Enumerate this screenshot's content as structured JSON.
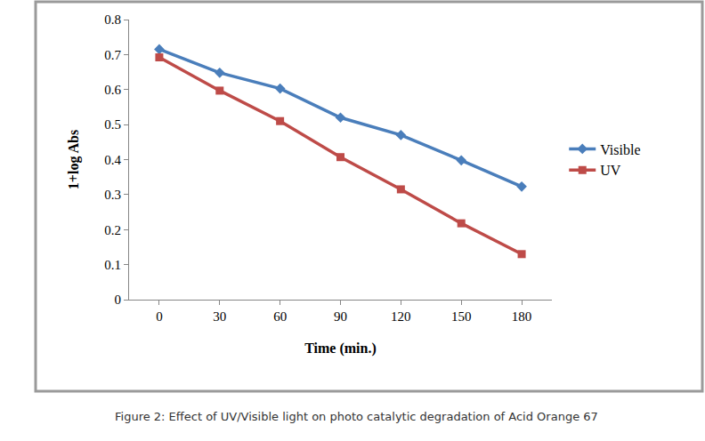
{
  "chart_data": {
    "type": "line",
    "title": "Figure 2: Effect of UV/Visible light on photo catalytic degradation of Acid Orange 67",
    "x_label": "Time (min.)",
    "y_label": "1+log Abs",
    "categories": [
      "0",
      "30",
      "60",
      "90",
      "120",
      "150",
      "180"
    ],
    "series": [
      {
        "name": "Visible",
        "color": "#4a7ebb",
        "marker": "diamond",
        "values": [
          0.715,
          0.648,
          0.603,
          0.52,
          0.47,
          0.398,
          0.323
        ]
      },
      {
        "name": "UV",
        "color": "#be4b48",
        "marker": "square",
        "values": [
          0.692,
          0.597,
          0.51,
          0.407,
          0.315,
          0.218,
          0.13
        ]
      }
    ],
    "ylim": [
      0,
      0.8
    ],
    "yticks": [
      0,
      0.1,
      0.2,
      0.3,
      0.4,
      0.5,
      0.6,
      0.7,
      0.8
    ],
    "grid": false,
    "legend": "right"
  }
}
